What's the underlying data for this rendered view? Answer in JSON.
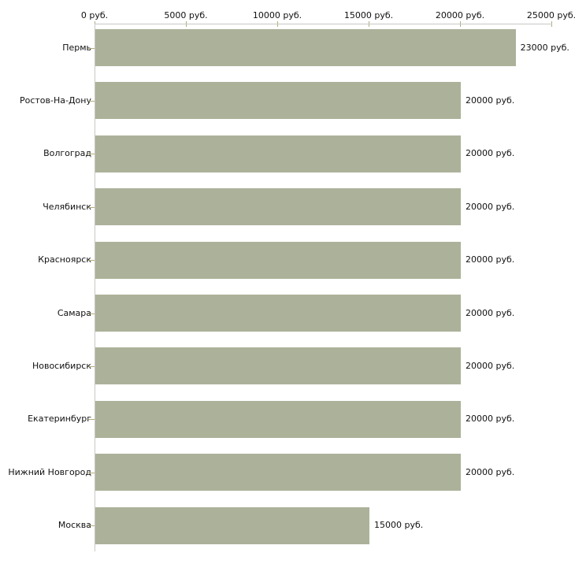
{
  "chart_data": {
    "type": "bar",
    "orientation": "horizontal",
    "title": "",
    "xlabel": "",
    "ylabel": "",
    "categories": [
      "Пермь",
      "Ростов-На-Дону",
      "Волгоград",
      "Челябинск",
      "Красноярск",
      "Самара",
      "Новосибирск",
      "Екатеринбург",
      "Нижний Новгород",
      "Москва"
    ],
    "values": [
      23000,
      20000,
      20000,
      20000,
      20000,
      20000,
      20000,
      20000,
      20000,
      15000
    ],
    "value_labels": [
      "23000 руб.",
      "20000 руб.",
      "20000 руб.",
      "20000 руб.",
      "20000 руб.",
      "20000 руб.",
      "20000 руб.",
      "20000 руб.",
      "20000 руб.",
      "15000 руб."
    ],
    "x_axis": {
      "position": "top",
      "range": [
        0,
        25000
      ],
      "ticks": [
        0,
        5000,
        10000,
        15000,
        20000,
        25000
      ],
      "tick_labels": [
        "0 руб.",
        "5000 руб.",
        "10000 руб.",
        "15000 руб.",
        "20000 руб.",
        "25000 руб."
      ]
    },
    "grid": false,
    "legend": false,
    "colors": {
      "bar": "#acb29a",
      "axis_line": "#c8c8c2",
      "tick_mark": "#b1aa7d",
      "text": "#111111",
      "background": "#ffffff"
    }
  }
}
